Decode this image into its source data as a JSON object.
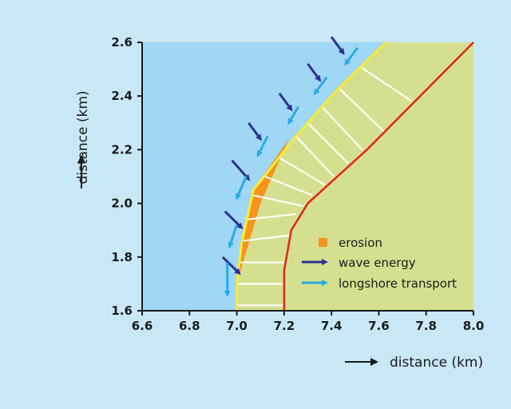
{
  "chart_data": {
    "type": "diagram",
    "xlabel": "distance (km)",
    "ylabel": "distance (km)",
    "xlim": [
      6.6,
      8.0
    ],
    "ylim": [
      1.6,
      2.6
    ],
    "x_ticks": [
      "6.6",
      "6.8",
      "7.0",
      "7.2",
      "7.4",
      "7.6",
      "7.8",
      "8.0"
    ],
    "y_ticks": [
      "1.6",
      "1.8",
      "2.0",
      "2.2",
      "2.4",
      "2.6"
    ],
    "legend": [
      {
        "label": "erosion",
        "color": "#f7941d",
        "symbol": "square"
      },
      {
        "label": "wave energy",
        "color": "#2e3192",
        "symbol": "arrow"
      },
      {
        "label": "longshore transport",
        "color": "#29abe2",
        "symbol": "arrow"
      }
    ],
    "colors": {
      "sea": "#9fd7f4",
      "land": "#d4e08f",
      "coastline": "#f7ec3b",
      "original_coast": "#e2231a",
      "erosion": "#f7941d",
      "wave_energy": "#2e3192",
      "longshore_transport": "#29abe2",
      "background": "#c8e8f6"
    },
    "coastline_yellow": [
      [
        7.0,
        1.6
      ],
      [
        7.0,
        1.7
      ],
      [
        7.02,
        1.85
      ],
      [
        7.07,
        2.05
      ],
      [
        7.25,
        2.25
      ],
      [
        7.42,
        2.42
      ],
      [
        7.63,
        2.6
      ]
    ],
    "coastline_red": [
      [
        7.2,
        1.6
      ],
      [
        7.2,
        1.75
      ],
      [
        7.23,
        1.9
      ],
      [
        7.3,
        2.0
      ],
      [
        7.55,
        2.2
      ],
      [
        8.0,
        2.6
      ]
    ],
    "erosion_polygon": [
      [
        7.0,
        1.7
      ],
      [
        7.02,
        1.85
      ],
      [
        7.07,
        2.05
      ],
      [
        7.22,
        2.24
      ],
      [
        7.1,
        2.0
      ],
      [
        7.04,
        1.82
      ]
    ],
    "transect_lines": [
      [
        [
          7.0,
          1.62
        ],
        [
          7.2,
          1.62
        ]
      ],
      [
        [
          7.0,
          1.7
        ],
        [
          7.2,
          1.7
        ]
      ],
      [
        [
          7.01,
          1.78
        ],
        [
          7.2,
          1.78
        ]
      ],
      [
        [
          7.02,
          1.86
        ],
        [
          7.22,
          1.88
        ]
      ],
      [
        [
          7.04,
          1.94
        ],
        [
          7.25,
          1.96
        ]
      ],
      [
        [
          7.07,
          2.03
        ],
        [
          7.28,
          1.99
        ]
      ],
      [
        [
          7.12,
          2.1
        ],
        [
          7.32,
          2.03
        ]
      ],
      [
        [
          7.18,
          2.17
        ],
        [
          7.37,
          2.07
        ]
      ],
      [
        [
          7.25,
          2.25
        ],
        [
          7.41,
          2.1
        ]
      ],
      [
        [
          7.3,
          2.3
        ],
        [
          7.47,
          2.15
        ]
      ],
      [
        [
          7.36,
          2.36
        ],
        [
          7.53,
          2.2
        ]
      ],
      [
        [
          7.43,
          2.43
        ],
        [
          7.62,
          2.27
        ]
      ],
      [
        [
          7.52,
          2.51
        ],
        [
          7.74,
          2.38
        ]
      ]
    ],
    "wave_arrows": [
      [
        [
          6.94,
          1.8
        ],
        [
          7.01,
          1.74
        ]
      ],
      [
        [
          6.95,
          1.97
        ],
        [
          7.02,
          1.91
        ]
      ],
      [
        [
          6.98,
          2.16
        ],
        [
          7.05,
          2.09
        ]
      ],
      [
        [
          7.05,
          2.3
        ],
        [
          7.1,
          2.24
        ]
      ],
      [
        [
          7.18,
          2.41
        ],
        [
          7.23,
          2.35
        ]
      ],
      [
        [
          7.3,
          2.52
        ],
        [
          7.35,
          2.46
        ]
      ],
      [
        [
          7.4,
          2.62
        ],
        [
          7.45,
          2.56
        ]
      ]
    ],
    "transport_arrows": [
      [
        [
          6.96,
          1.78
        ],
        [
          6.96,
          1.66
        ]
      ],
      [
        [
          7.0,
          1.92
        ],
        [
          6.97,
          1.84
        ]
      ],
      [
        [
          7.04,
          2.1
        ],
        [
          7.0,
          2.02
        ]
      ],
      [
        [
          7.13,
          2.25
        ],
        [
          7.09,
          2.18
        ]
      ],
      [
        [
          7.26,
          2.36
        ],
        [
          7.22,
          2.3
        ]
      ],
      [
        [
          7.38,
          2.47
        ],
        [
          7.33,
          2.41
        ]
      ],
      [
        [
          7.51,
          2.58
        ],
        [
          7.46,
          2.52
        ]
      ]
    ]
  }
}
